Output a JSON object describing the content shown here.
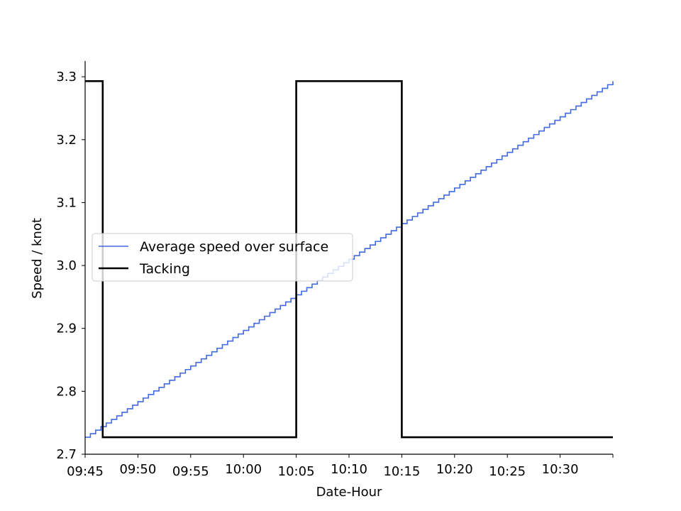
{
  "chart_data": {
    "type": "line",
    "title": "",
    "xlabel": "Date-Hour",
    "ylabel": "Speed / knot",
    "xlim": [
      "09:45",
      "10:35"
    ],
    "ylim": [
      2.7,
      3.325
    ],
    "x_ticks": [
      "09:45",
      "09:50",
      "09:55",
      "10:00",
      "10:05",
      "10:10",
      "10:15",
      "10:20",
      "10:25",
      "10:30"
    ],
    "y_ticks": [
      "2.7",
      "2.8",
      "2.9",
      "3.0",
      "3.1",
      "3.2",
      "3.3"
    ],
    "grid": false,
    "legend_position": "center-left",
    "series": [
      {
        "name": "Average speed over surface",
        "color": "#4169e1",
        "drawstyle": "steps",
        "points": [
          {
            "x": "09:45",
            "y": 2.727
          },
          {
            "x": "10:35",
            "y": 3.293
          }
        ]
      },
      {
        "name": "Tacking",
        "color": "#000000",
        "drawstyle": "steps",
        "points": [
          {
            "x": "09:45",
            "y": 3.293
          },
          {
            "x": "09:46:40",
            "y": 2.727
          },
          {
            "x": "10:05",
            "y": 3.293
          },
          {
            "x": "10:15",
            "y": 2.727
          },
          {
            "x": "10:35",
            "y": 2.727
          }
        ]
      }
    ]
  }
}
